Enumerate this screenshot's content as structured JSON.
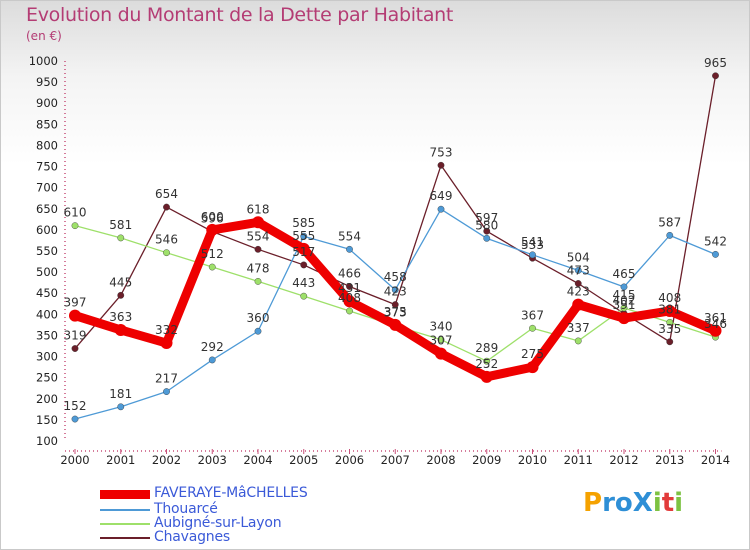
{
  "title": "Evolution du Montant de la Dette par Habitant",
  "unit": "(en €)",
  "logo": {
    "text": "ProXiti",
    "letters": [
      "P",
      "r",
      "o",
      "X",
      "i",
      "t",
      "i"
    ],
    "colors": [
      "#f5a200",
      "#2e8fd6",
      "#2e8fd6",
      "#2e8fd6",
      "#7dc242",
      "#e23b3b",
      "#7dc242"
    ]
  },
  "chart_data": {
    "type": "line",
    "x": [
      "2000",
      "2001",
      "2002",
      "2003",
      "2004",
      "2005",
      "2006",
      "2007",
      "2008",
      "2009",
      "2010",
      "2011",
      "2012",
      "2013",
      "2014"
    ],
    "ylim": [
      100,
      1000
    ],
    "yticks": [
      "100",
      "150",
      "200",
      "250",
      "300",
      "350",
      "400",
      "450",
      "500",
      "550",
      "600",
      "650",
      "700",
      "750",
      "800",
      "850",
      "900",
      "950",
      "1000"
    ],
    "grid": false,
    "legend_position": "bottom-left",
    "series": [
      {
        "name": "Chavagnes",
        "color": "#6b1f2a",
        "width": 1.3,
        "marker": 3.2,
        "values": [
          319,
          445,
          654,
          596,
          554,
          517,
          466,
          423,
          753,
          597,
          533,
          473,
          402,
          335,
          965
        ],
        "labels": [
          "319",
          "445",
          "654",
          "596",
          "554",
          "517",
          "466",
          "423",
          "753",
          "597",
          "533",
          "473",
          "402",
          "335",
          "965"
        ]
      },
      {
        "name": "Aubigné-sur-Layon",
        "color": "#9ee06a",
        "width": 1.3,
        "marker": 3.2,
        "values": [
          610,
          581,
          546,
          512,
          478,
          443,
          408,
          373,
          340,
          289,
          367,
          337,
          415,
          381,
          346
        ],
        "labels": [
          "610",
          "581",
          "546",
          "512",
          "478",
          "443",
          "408",
          "373",
          "340",
          "289",
          "367",
          "337",
          "415",
          "381",
          "346"
        ]
      },
      {
        "name": "Thouarcé",
        "color": "#4e9ad6",
        "width": 1.3,
        "marker": 3.2,
        "values": [
          152,
          181,
          217,
          292,
          360,
          585,
          554,
          458,
          649,
          580,
          541,
          504,
          465,
          587,
          542
        ],
        "labels": [
          "152",
          "181",
          "217",
          "292",
          "360",
          "585",
          "554",
          "458",
          "649",
          "580",
          "541",
          "504",
          "465",
          "587",
          "542"
        ]
      },
      {
        "name": "FAVERAYE-MâCHELLES",
        "color": "#ee0000",
        "width": 9,
        "marker": 6,
        "values": [
          397,
          363,
          332,
          600,
          618,
          555,
          431,
          375,
          307,
          252,
          275,
          423,
          391,
          408,
          361
        ],
        "labels": [
          "397",
          "363",
          "332",
          "600",
          "618",
          "555",
          "431",
          "375",
          "307",
          "252",
          "275",
          "423",
          "391",
          "408",
          "361"
        ]
      }
    ]
  },
  "legend": [
    {
      "label": "FAVERAYE-MâCHELLES",
      "color": "#ee0000",
      "thick": 9
    },
    {
      "label": "Thouarcé",
      "color": "#4e9ad6",
      "thick": 2
    },
    {
      "label": "Aubigné-sur-Layon",
      "color": "#9ee06a",
      "thick": 2
    },
    {
      "label": "Chavagnes",
      "color": "#6b1f2a",
      "thick": 2
    }
  ]
}
